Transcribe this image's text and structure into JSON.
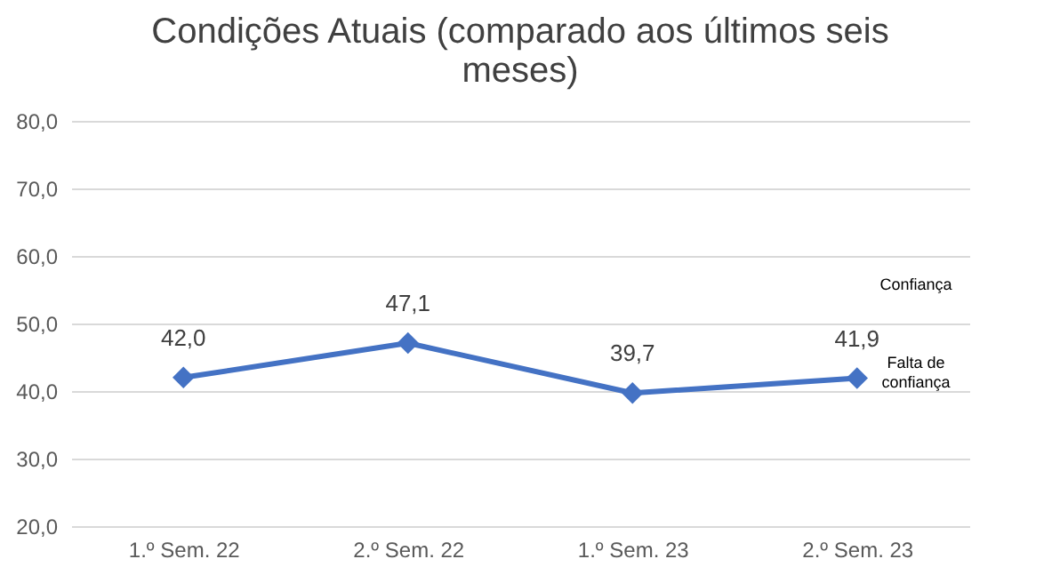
{
  "chart_data": {
    "type": "line",
    "title": "Condições Atuais (comparado aos últimos seis meses)",
    "categories": [
      "1.º Sem. 22",
      "2.º Sem. 22",
      "1.º Sem. 23",
      "2.º Sem. 23"
    ],
    "series": [
      {
        "color": "#4472c4",
        "values": [
          42.0,
          47.1,
          39.7,
          41.9
        ],
        "value_labels": [
          "42,0",
          "47,1",
          "39,7",
          "41,9"
        ]
      }
    ],
    "ylim": [
      20,
      80
    ],
    "yticks": [
      {
        "value": 20,
        "label": "20,0"
      },
      {
        "value": 30,
        "label": "30,0"
      },
      {
        "value": 40,
        "label": "40,0"
      },
      {
        "value": 50,
        "label": "50,0"
      },
      {
        "value": 60,
        "label": "60,0"
      },
      {
        "value": 70,
        "label": "70,0"
      },
      {
        "value": 80,
        "label": "80,0"
      }
    ],
    "grid": "y",
    "marker": "diamond",
    "line_style": "solid",
    "annotations": [
      "Confiança",
      "Falta de confiança"
    ]
  }
}
